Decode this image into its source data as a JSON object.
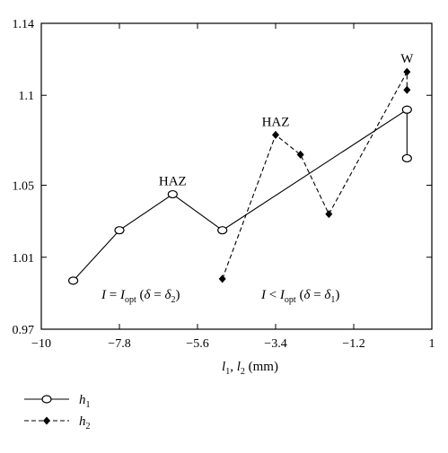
{
  "chart_data": {
    "type": "line",
    "xlabel": "l1, l2 (mm)",
    "xlabel_parts": {
      "a": "l",
      "a_sub": "1",
      "sep": ", ",
      "b": "l",
      "b_sub": "2",
      "unit": " (mm)"
    },
    "xlim": [
      -10,
      1
    ],
    "ylim": [
      0.97,
      1.14
    ],
    "x_ticks": [
      -10,
      -7.8,
      -5.6,
      -3.4,
      -1.2,
      1
    ],
    "x_tick_labels": [
      "−10",
      "−7.8",
      "−5.6",
      "−3.4",
      "−1.2",
      "1"
    ],
    "y_ticks": [
      0.97,
      1.01,
      1.05,
      1.1,
      1.14
    ],
    "y_tick_labels": [
      "0.97",
      "1.01",
      "1.05",
      "1.1",
      "1.14"
    ],
    "grid": false,
    "legend_position": "bottom-left",
    "series": [
      {
        "name": "h1",
        "name_parts": {
          "base": "h",
          "sub": "1"
        },
        "marker": "open-circle",
        "line": "solid",
        "x": [
          -9.1,
          -7.8,
          -6.3,
          -4.9,
          0.3,
          0.3
        ],
        "y": [
          0.997,
          1.025,
          1.045,
          1.025,
          1.092,
          1.065
        ]
      },
      {
        "name": "h2",
        "name_parts": {
          "base": "h",
          "sub": "2"
        },
        "marker": "filled-diamond",
        "line": "dashed",
        "x": [
          -4.9,
          -3.4,
          -2.7,
          -1.9,
          0.3,
          0.3
        ],
        "y": [
          0.998,
          1.078,
          1.067,
          1.034,
          1.113,
          1.103
        ]
      }
    ],
    "annotations": [
      {
        "id": "haz-left",
        "text": "HAZ",
        "x": -6.3,
        "y": 1.05
      },
      {
        "id": "haz-right",
        "text": "HAZ",
        "x": -3.4,
        "y": 1.083
      },
      {
        "id": "weld",
        "text": "W",
        "x": 0.3,
        "y": 1.118
      },
      {
        "id": "cond-opt",
        "kind": "I_opt",
        "x": -7.2,
        "y": 0.987,
        "parts": {
          "I": "I",
          "eq": " = ",
          "Iopt": "I",
          "opt": "opt",
          "open": " (",
          "delta": "δ",
          "eq2": " = ",
          "delta2": "δ",
          "sub": "2",
          "close": ")"
        }
      },
      {
        "id": "cond-less",
        "kind": "I_lt",
        "x": -2.7,
        "y": 0.987,
        "parts": {
          "I": "I",
          "lt": " < ",
          "Iopt": "I",
          "opt": "opt",
          "open": " (",
          "delta": "δ",
          "eq2": " = ",
          "delta2": "δ",
          "sub": "1",
          "close": ")"
        }
      }
    ]
  }
}
